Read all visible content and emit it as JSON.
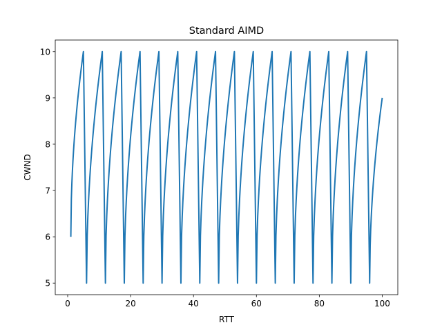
{
  "chart_data": {
    "type": "line",
    "title": "Standard AIMD",
    "xlabel": "RTT",
    "ylabel": "CWND",
    "xlim": [
      -3.95,
      104.95
    ],
    "ylim": [
      4.75,
      10.25
    ],
    "xticks": [
      0,
      20,
      40,
      60,
      80,
      100
    ],
    "yticks": [
      5,
      6,
      7,
      8,
      9,
      10
    ],
    "grid": false,
    "color": "#1f77b4",
    "series": [
      {
        "x": [
          1,
          5,
          6,
          11,
          12,
          17,
          18,
          23,
          24,
          29,
          30,
          35,
          36,
          41,
          42,
          47,
          48,
          53,
          54,
          59,
          60,
          65,
          66,
          71,
          72,
          77,
          78,
          83,
          84,
          89,
          90,
          95,
          96,
          100
        ],
        "y": [
          6,
          10,
          5,
          10,
          5,
          10,
          5,
          10,
          5,
          10,
          5,
          10,
          5,
          10,
          5,
          10,
          5,
          10,
          5,
          10,
          5,
          10,
          5,
          10,
          5,
          10,
          5,
          10,
          5,
          10,
          5,
          10,
          5,
          9
        ],
        "curve": "concave-rise"
      }
    ]
  }
}
